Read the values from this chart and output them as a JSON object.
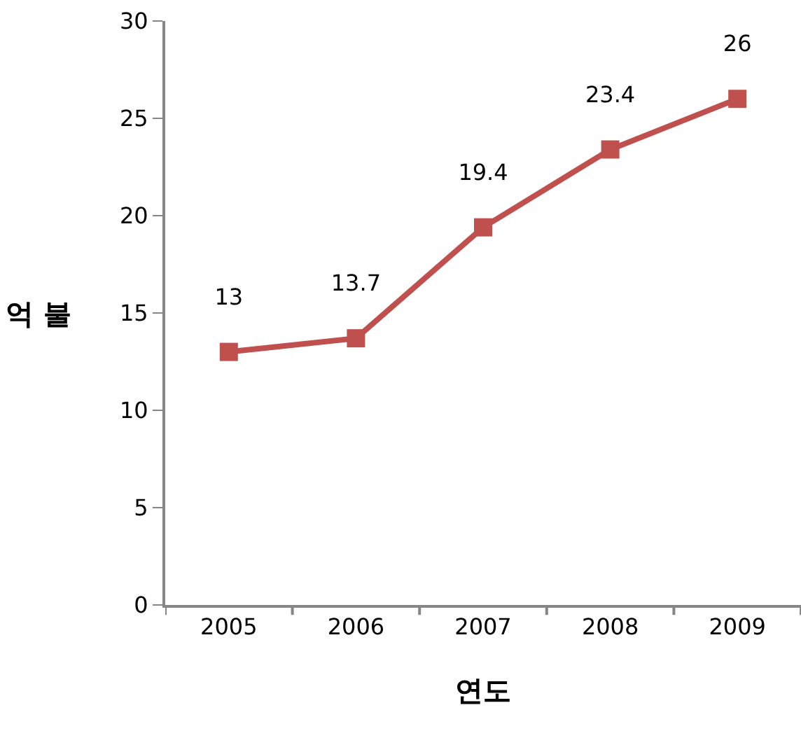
{
  "chart_data": {
    "type": "line",
    "xlabel": "연도",
    "ylabel": "억 불",
    "categories": [
      "2005",
      "2006",
      "2007",
      "2008",
      "2009"
    ],
    "series": [
      {
        "color": "#c0504d",
        "values": [
          13,
          13.7,
          19.4,
          23.4,
          26
        ]
      }
    ],
    "ylim": [
      0,
      30
    ],
    "yticks": [
      0,
      5,
      10,
      15,
      20,
      25,
      30
    ],
    "grid": false,
    "marker": "square",
    "line_style": "solid",
    "data_labels": true
  }
}
